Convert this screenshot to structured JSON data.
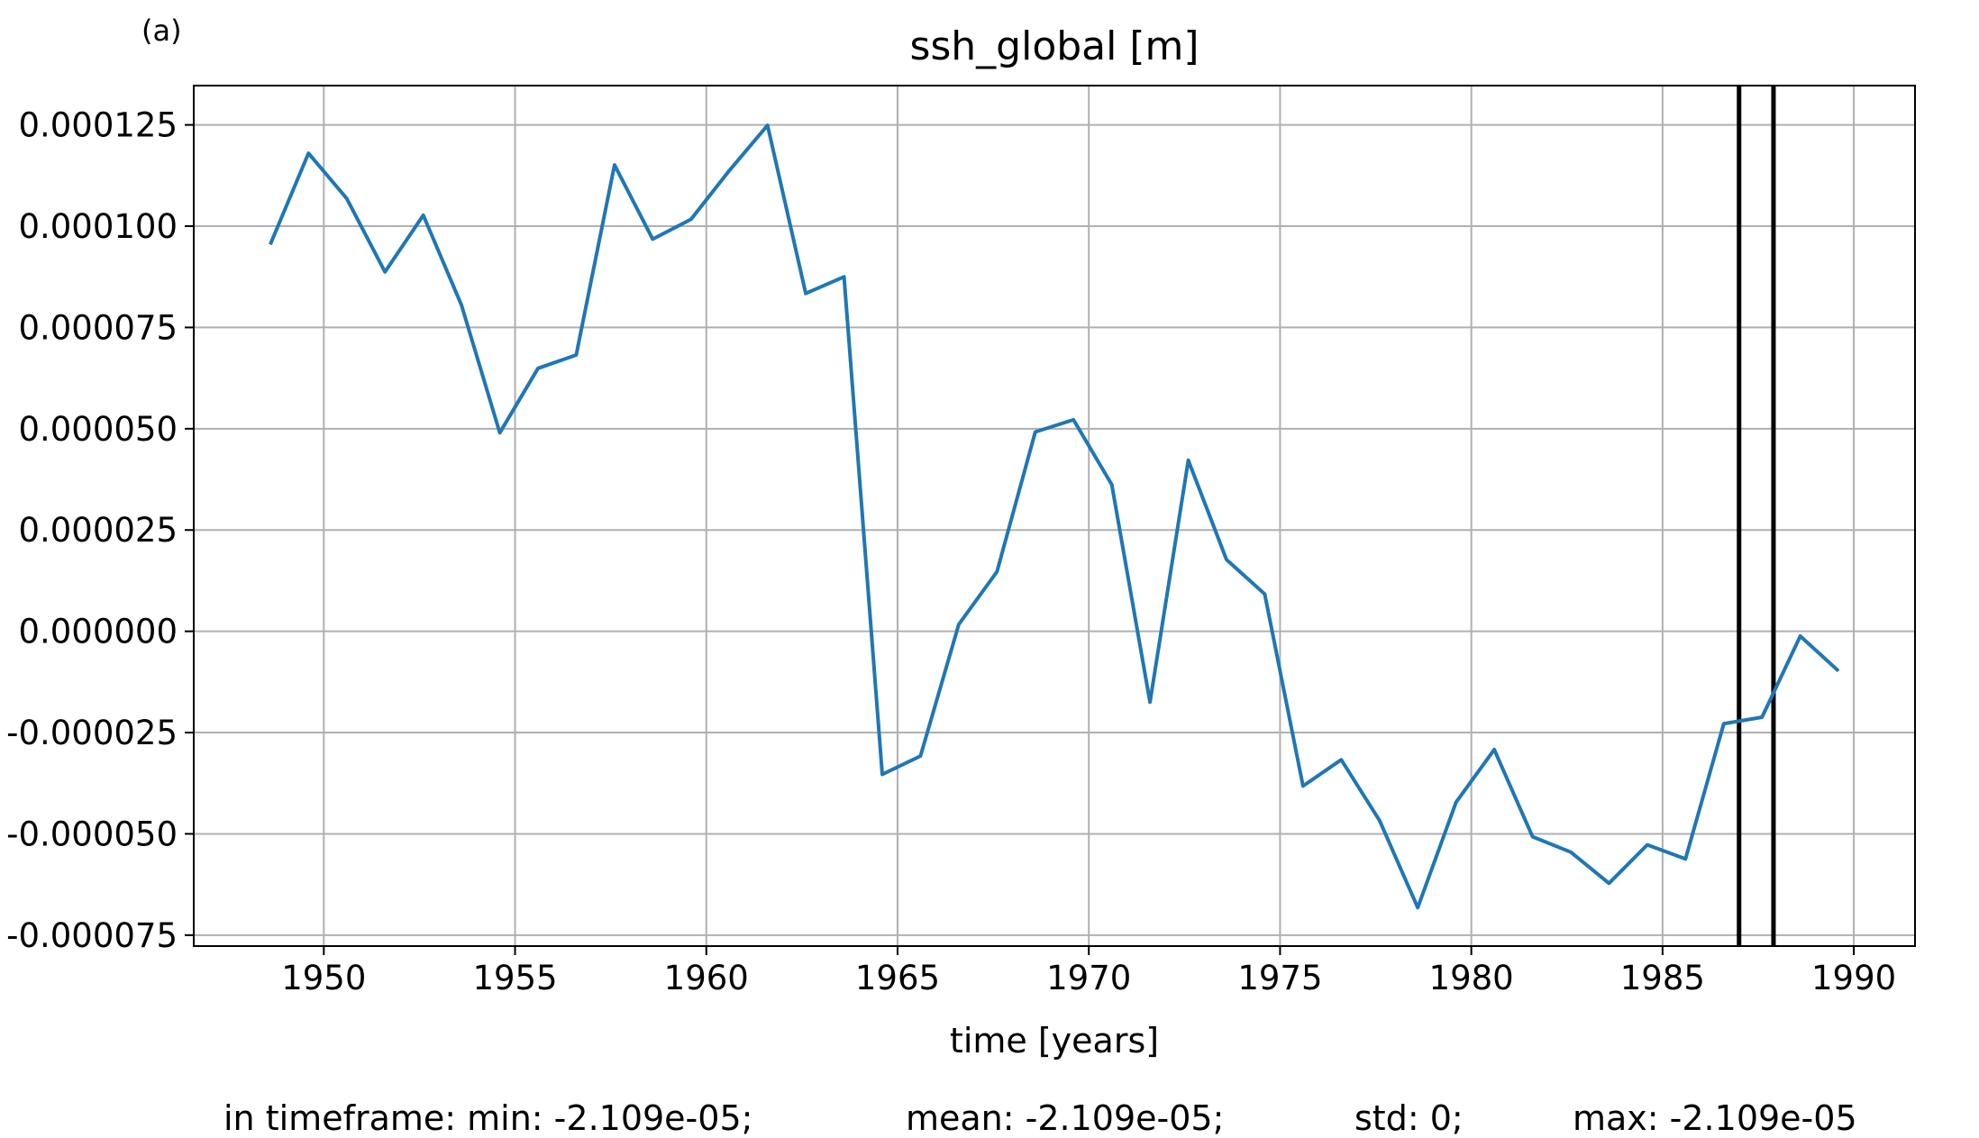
{
  "panel_label": "(a)",
  "colors": {
    "series": "#1f77b4",
    "grid": "#b0b0b0",
    "marker_lines": "#000000"
  },
  "chart_data": {
    "type": "line",
    "title": "ssh_global [m]",
    "xlabel": "time [years]",
    "ylabel": "",
    "xlim": [
      1946.6,
      1991.6
    ],
    "ylim": [
      -7.77e-05,
      0.0001347
    ],
    "xticks": [
      1950,
      1955,
      1960,
      1965,
      1970,
      1975,
      1980,
      1985,
      1990
    ],
    "yticks": [
      0.000125,
      0.0001,
      7.5e-05,
      5e-05,
      2.5e-05,
      0.0,
      -2.5e-05,
      -5e-05,
      -7.5e-05
    ],
    "ytick_labels": [
      "0.000125",
      "0.000100",
      "0.000075",
      "0.000050",
      "0.000025",
      "0.000000",
      "-0.000025",
      "-0.000050",
      "-0.000075"
    ],
    "grid": true,
    "series": [
      {
        "x": [
          1948.6,
          1949.6,
          1950.6,
          1951.6,
          1952.6,
          1953.6,
          1954.6,
          1955.6,
          1956.6,
          1957.6,
          1958.6,
          1959.6,
          1960.6,
          1961.6,
          1962.6,
          1963.6,
          1964.6,
          1965.6,
          1966.6,
          1967.6,
          1968.6,
          1969.6,
          1970.6,
          1971.6,
          1972.6,
          1973.6,
          1974.6,
          1975.6,
          1976.6,
          1977.6,
          1978.6,
          1979.6,
          1980.6,
          1981.6,
          1982.6,
          1983.6,
          1984.6,
          1985.6,
          1986.6,
          1987.6,
          1988.6,
          1989.6
        ],
        "y": [
          9.55e-05,
          0.000118,
          0.0001068,
          8.87e-05,
          0.0001027,
          8.05e-05,
          4.9e-05,
          6.49e-05,
          6.82e-05,
          0.0001151,
          9.68e-05,
          0.0001017,
          0.0001137,
          0.0001249,
          8.34e-05,
          8.75e-05,
          -3.53e-05,
          -3.08e-05,
          1.7e-06,
          1.47e-05,
          4.92e-05,
          5.22e-05,
          3.62e-05,
          -1.75e-05,
          4.22e-05,
          1.77e-05,
          9.2e-06,
          -3.82e-05,
          -3.17e-05,
          -4.67e-05,
          -6.82e-05,
          -4.22e-05,
          -2.92e-05,
          -5.07e-05,
          -5.45e-05,
          -6.22e-05,
          -5.27e-05,
          -5.62e-05,
          -2.28e-05,
          -2.12e-05,
          -1.2e-06,
          -9.8e-06
        ]
      }
    ],
    "vlines": [
      1987.0,
      1987.9
    ],
    "stats": {
      "min": "in timeframe: min: -2.109e-05;",
      "mean": "mean: -2.109e-05;",
      "std": "std: 0;",
      "max": "max: -2.109e-05"
    }
  }
}
